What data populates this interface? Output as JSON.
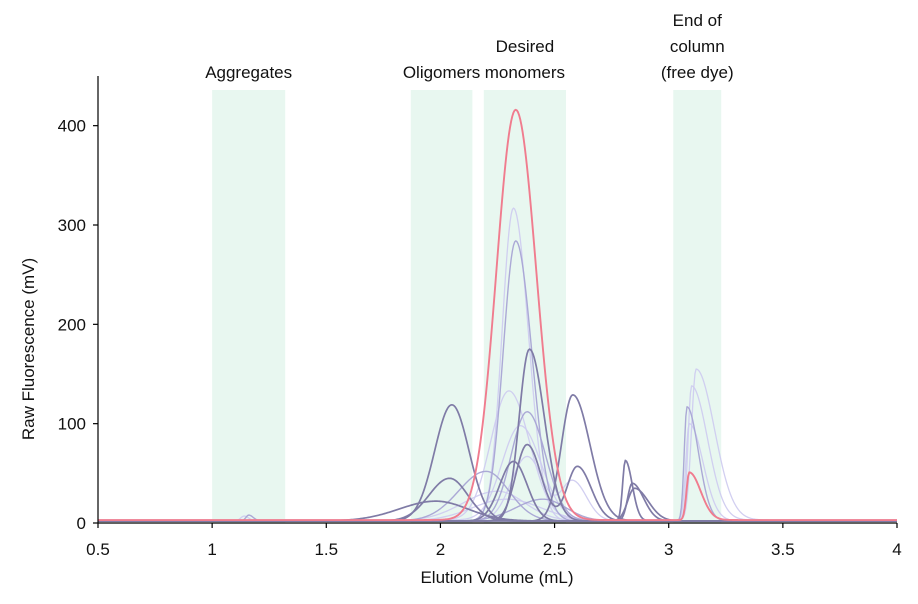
{
  "chart_data": {
    "type": "line",
    "title": "",
    "xlabel": "Elution Volume  (mL)",
    "ylabel": "Raw Fluorescence  (mV)",
    "xlim": [
      0.5,
      4.0
    ],
    "ylim": [
      0,
      450
    ],
    "xticks": [
      0.5,
      1,
      1.5,
      2,
      2.5,
      3,
      3.5,
      4
    ],
    "xtick_labels": [
      "0.5",
      "1",
      "1.5",
      "2",
      "2.5",
      "3",
      "3.5",
      "4"
    ],
    "yticks": [
      0,
      100,
      200,
      300,
      400
    ],
    "ytick_labels": [
      "0",
      "100",
      "200",
      "300",
      "400"
    ],
    "grid": false,
    "legend": "none",
    "colors": {
      "highlight": "#f07c8e",
      "dark": "#7f7ba6",
      "medium": "#a8a4d4",
      "light": "#cdcaf0",
      "region": "#e8f7f0"
    },
    "regions": [
      {
        "label_lines": [
          "Aggregates"
        ],
        "x0": 1.0,
        "x1": 1.32
      },
      {
        "label_lines": [
          "Oligomers"
        ],
        "x0": 1.87,
        "x1": 2.14
      },
      {
        "label_lines": [
          "Desired",
          "monomers"
        ],
        "x0": 2.19,
        "x1": 2.55
      },
      {
        "label_lines": [
          "End of",
          "column",
          "(free dye)"
        ],
        "x0": 3.02,
        "x1": 3.23
      }
    ],
    "series": [
      {
        "style": "highlight",
        "baseline": 3,
        "peaks": [
          {
            "x": 2.33,
            "h": 413,
            "wl": 0.085,
            "wr": 0.09
          },
          {
            "x": 3.09,
            "h": 48,
            "wl": 0.012,
            "wr": 0.05
          }
        ]
      },
      {
        "style": "dark",
        "baseline": 2,
        "peaks": [
          {
            "x": 2.05,
            "h": 117,
            "wl": 0.075,
            "wr": 0.075
          }
        ]
      },
      {
        "style": "dark",
        "baseline": 2,
        "peaks": [
          {
            "x": 2.39,
            "h": 173,
            "wl": 0.045,
            "wr": 0.065
          }
        ]
      },
      {
        "style": "dark",
        "baseline": 2,
        "peaks": [
          {
            "x": 2.58,
            "h": 127,
            "wl": 0.05,
            "wr": 0.075
          }
        ]
      },
      {
        "style": "dark",
        "baseline": 2,
        "peaks": [
          {
            "x": 2.04,
            "h": 43,
            "wl": 0.09,
            "wr": 0.08
          },
          {
            "x": 2.81,
            "h": 61,
            "wl": 0.012,
            "wr": 0.03
          }
        ]
      },
      {
        "style": "dark",
        "baseline": 2,
        "peaks": [
          {
            "x": 2.38,
            "h": 77,
            "wl": 0.05,
            "wr": 0.06
          },
          {
            "x": 2.6,
            "h": 55,
            "wl": 0.045,
            "wr": 0.06
          }
        ]
      },
      {
        "style": "dark",
        "baseline": 2,
        "peaks": [
          {
            "x": 1.98,
            "h": 20,
            "wl": 0.16,
            "wr": 0.14
          },
          {
            "x": 2.85,
            "h": 33,
            "wl": 0.03,
            "wr": 0.06
          }
        ]
      },
      {
        "style": "dark",
        "baseline": 2,
        "peaks": [
          {
            "x": 2.32,
            "h": 60,
            "wl": 0.06,
            "wr": 0.06
          },
          {
            "x": 2.84,
            "h": 38,
            "wl": 0.02,
            "wr": 0.05
          }
        ]
      },
      {
        "style": "medium",
        "baseline": 2,
        "peaks": [
          {
            "x": 2.33,
            "h": 282,
            "wl": 0.055,
            "wr": 0.07
          }
        ]
      },
      {
        "style": "medium",
        "baseline": 2,
        "peaks": [
          {
            "x": 2.38,
            "h": 110,
            "wl": 0.07,
            "wr": 0.08
          },
          {
            "x": 3.08,
            "h": 115,
            "wl": 0.012,
            "wr": 0.05
          }
        ]
      },
      {
        "style": "medium",
        "baseline": 2,
        "peaks": [
          {
            "x": 2.2,
            "h": 50,
            "wl": 0.12,
            "wr": 0.1
          }
        ]
      },
      {
        "style": "light",
        "baseline": 2,
        "peaks": [
          {
            "x": 2.32,
            "h": 315,
            "wl": 0.05,
            "wr": 0.065
          }
        ]
      },
      {
        "style": "light",
        "baseline": 3,
        "peaks": [
          {
            "x": 2.35,
            "h": 95,
            "wl": 0.08,
            "wr": 0.09
          },
          {
            "x": 3.12,
            "h": 152,
            "wl": 0.02,
            "wr": 0.08
          }
        ]
      },
      {
        "style": "light",
        "baseline": 3,
        "peaks": [
          {
            "x": 2.3,
            "h": 130,
            "wl": 0.08,
            "wr": 0.09
          },
          {
            "x": 3.1,
            "h": 135,
            "wl": 0.015,
            "wr": 0.07
          }
        ]
      },
      {
        "style": "light",
        "baseline": 2,
        "peaks": [
          {
            "x": 2.38,
            "h": 65,
            "wl": 0.07,
            "wr": 0.07
          },
          {
            "x": 2.58,
            "h": 40,
            "wl": 0.05,
            "wr": 0.06
          }
        ]
      },
      {
        "style": "light",
        "baseline": 2,
        "peaks": [
          {
            "x": 1.14,
            "h": 5,
            "wl": 0.015,
            "wr": 0.02
          },
          {
            "x": 2.25,
            "h": 30,
            "wl": 0.15,
            "wr": 0.12
          }
        ]
      },
      {
        "style": "medium",
        "baseline": 2,
        "peaks": [
          {
            "x": 1.16,
            "h": 6,
            "wl": 0.012,
            "wr": 0.02
          },
          {
            "x": 2.45,
            "h": 22,
            "wl": 0.12,
            "wr": 0.1
          }
        ]
      },
      {
        "style": "light",
        "baseline": 2,
        "peaks": [
          {
            "x": 2.29,
            "h": 22,
            "wl": 0.15,
            "wr": 0.15
          },
          {
            "x": 3.09,
            "h": 98,
            "wl": 0.015,
            "wr": 0.06
          }
        ]
      }
    ]
  }
}
